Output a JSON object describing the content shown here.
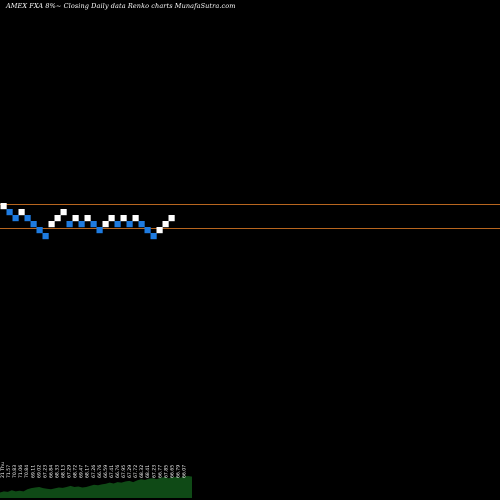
{
  "title": "AMEX  FXA 8%~  Closing Daily data  Renko  charts MunafaSutra.com",
  "colors": {
    "background": "#000000",
    "up_brick": "#ffffff",
    "down_brick": "#1e7be0",
    "level_line": "#b8661f",
    "volume_area": "#0f4a16",
    "text": "#ffffff"
  },
  "chart_data": {
    "type": "renko",
    "title": "AMEX  FXA 8%~  Closing Daily data  Renko  charts MunafaSutra.com",
    "bricks": [
      {
        "dir": "up",
        "level": 8
      },
      {
        "dir": "down",
        "level": 7
      },
      {
        "dir": "down",
        "level": 6
      },
      {
        "dir": "up",
        "level": 7
      },
      {
        "dir": "down",
        "level": 6
      },
      {
        "dir": "down",
        "level": 5
      },
      {
        "dir": "down",
        "level": 4
      },
      {
        "dir": "down",
        "level": 3
      },
      {
        "dir": "up",
        "level": 5
      },
      {
        "dir": "up",
        "level": 6
      },
      {
        "dir": "up",
        "level": 7
      },
      {
        "dir": "down",
        "level": 5
      },
      {
        "dir": "up",
        "level": 6
      },
      {
        "dir": "down",
        "level": 5
      },
      {
        "dir": "up",
        "level": 6
      },
      {
        "dir": "down",
        "level": 5
      },
      {
        "dir": "down",
        "level": 4
      },
      {
        "dir": "up",
        "level": 5
      },
      {
        "dir": "up",
        "level": 6
      },
      {
        "dir": "down",
        "level": 5
      },
      {
        "dir": "up",
        "level": 6
      },
      {
        "dir": "down",
        "level": 5
      },
      {
        "dir": "up",
        "level": 6
      },
      {
        "dir": "down",
        "level": 5
      },
      {
        "dir": "down",
        "level": 4
      },
      {
        "dir": "down",
        "level": 3
      },
      {
        "dir": "up",
        "level": 4
      },
      {
        "dir": "up",
        "level": 5
      },
      {
        "dir": "up",
        "level": 6
      }
    ],
    "levels": [
      8,
      4
    ],
    "x_tick_labels": [
      "21 Thu",
      "71.57",
      "70.83",
      "71.06",
      "70.84",
      "69.11",
      "69.02",
      "67.23",
      "66.84",
      "68.33",
      "68.13",
      "67.29",
      "68.72",
      "69.47",
      "68.17",
      "67.26",
      "66.76",
      "66.59",
      "67.41",
      "66.76",
      "67.95",
      "67.29",
      "67.72",
      "68.32",
      "68.41",
      "67.23",
      "66.77",
      "67.85",
      "66.65",
      "66.79",
      "66.07"
    ],
    "volume": [
      0.25,
      0.3,
      0.28,
      0.35,
      0.3,
      0.33,
      0.3,
      0.4,
      0.45,
      0.48,
      0.5,
      0.45,
      0.42,
      0.4,
      0.44,
      0.48,
      0.46,
      0.5,
      0.55,
      0.5,
      0.52,
      0.48,
      0.5,
      0.55,
      0.6,
      0.58,
      0.62,
      0.65,
      0.7,
      0.66,
      0.72,
      0.7,
      0.75,
      0.78,
      0.72,
      0.8,
      0.85,
      0.82,
      0.88,
      0.9,
      0.86,
      0.92,
      0.95,
      0.9,
      0.94,
      0.96,
      0.92,
      0.98,
      1.0,
      0.97
    ]
  }
}
